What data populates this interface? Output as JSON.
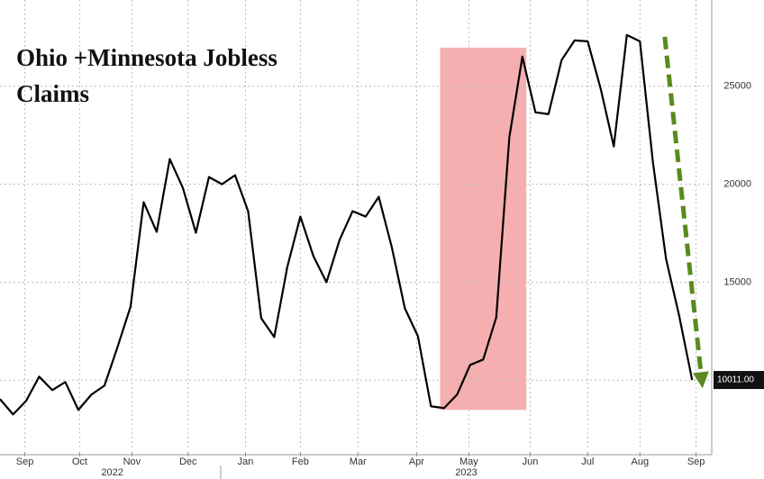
{
  "chart_data": {
    "type": "line",
    "title": "Ohio +Minnesota Jobless Claims",
    "series": [
      {
        "name": "Ohio +Minnesota Jobless Claims",
        "color": "#000000",
        "x": [
          0,
          1,
          2,
          3,
          4,
          5,
          6,
          7,
          8,
          9,
          10,
          11,
          12,
          13,
          14,
          15,
          16,
          17,
          18,
          19,
          20,
          21,
          22,
          23,
          24,
          25,
          26,
          27,
          28,
          29,
          30,
          31,
          32,
          33,
          34,
          35,
          36,
          37,
          38,
          39,
          40,
          41,
          42,
          43,
          44,
          45,
          46,
          47,
          48,
          49,
          50,
          51,
          52,
          53
        ],
        "values": [
          9037,
          8257,
          8945,
          10183,
          9495,
          9908,
          8486,
          9266,
          9725,
          11697,
          13761,
          19083,
          17569,
          21284,
          19817,
          17523,
          20367,
          20000,
          20459,
          18624,
          13165,
          12202,
          15780,
          18349,
          16330,
          15000,
          17156,
          18624,
          18349,
          19358,
          16789,
          13670,
          12248,
          8670,
          8578,
          9266,
          10780,
          11055,
          13211,
          22385,
          26514,
          23670,
          23578,
          26330,
          27339,
          27294,
          24862,
          21927,
          27615,
          27294,
          21101,
          16193,
          13303,
          10011
        ]
      }
    ],
    "last_label": "10011.00",
    "xlim": [
      0,
      54.5
    ],
    "xticks": [
      {
        "value": 1.9,
        "label": "Sep"
      },
      {
        "value": 6.1,
        "label": "Oct"
      },
      {
        "value": 10.1,
        "label": "Nov"
      },
      {
        "value": 14.4,
        "label": "Dec"
      },
      {
        "value": 18.8,
        "label": "Jan"
      },
      {
        "value": 23.0,
        "label": "Feb"
      },
      {
        "value": 27.4,
        "label": "Mar"
      },
      {
        "value": 31.9,
        "label": "Apr"
      },
      {
        "value": 35.9,
        "label": "May"
      },
      {
        "value": 40.6,
        "label": "Jun"
      },
      {
        "value": 45.0,
        "label": "Jul"
      },
      {
        "value": 49.0,
        "label": "Aug"
      },
      {
        "value": 53.3,
        "label": "Sep"
      }
    ],
    "year_labels": [
      {
        "value": 8.6,
        "label": "2022"
      },
      {
        "value": 35.7,
        "label": "2023"
      }
    ],
    "ylim": [
      6200,
      29400
    ],
    "yticks": [
      10000,
      15000,
      20000,
      25000
    ],
    "grid": true,
    "highlight": {
      "x": [
        33.7,
        40.3
      ],
      "y": [
        8486,
        26969
      ],
      "color": "#f4a6a8"
    },
    "arrow": {
      "x": [
        50.9,
        53.8
      ],
      "y": [
        27523,
        9587
      ],
      "color": "#5a8a1e"
    }
  }
}
